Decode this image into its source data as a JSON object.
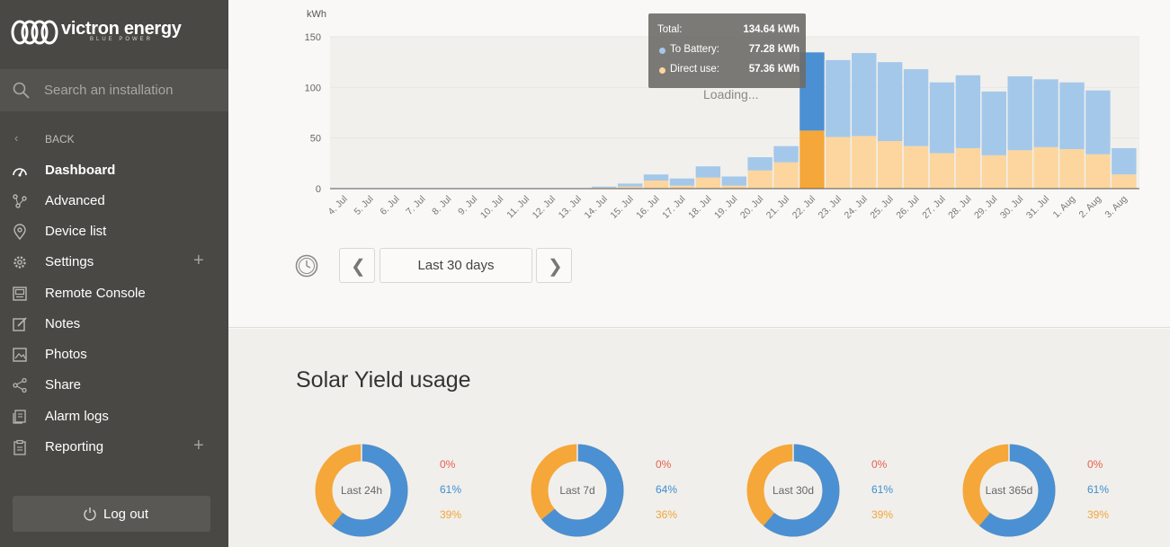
{
  "brand": {
    "name": "victron energy",
    "tagline": "BLUE POWER"
  },
  "search": {
    "placeholder": "Search an installation"
  },
  "nav": {
    "back_label": "BACK",
    "items": [
      {
        "label": "Dashboard",
        "icon": "gauge-icon",
        "active": true
      },
      {
        "label": "Advanced",
        "icon": "nodes-icon"
      },
      {
        "label": "Device list",
        "icon": "map-pin-icon"
      },
      {
        "label": "Settings",
        "icon": "gear-icon",
        "expandable": true
      },
      {
        "label": "Remote Console",
        "icon": "console-icon"
      },
      {
        "label": "Notes",
        "icon": "edit-icon"
      },
      {
        "label": "Photos",
        "icon": "photo-icon"
      },
      {
        "label": "Share",
        "icon": "share-icon"
      },
      {
        "label": "Alarm logs",
        "icon": "alarm-logs-icon"
      },
      {
        "label": "Reporting",
        "icon": "clipboard-icon",
        "expandable": true
      }
    ],
    "logout_label": "Log out"
  },
  "chart": {
    "loading_text": "Loading...",
    "range_label": "Last 30 days",
    "tooltip": {
      "total_label": "Total:",
      "total_value": "134.64 kWh",
      "battery_label": "To Battery:",
      "battery_value": "77.28 kWh",
      "direct_label": "Direct use:",
      "direct_value": "57.36 kWh"
    }
  },
  "chart_data": {
    "type": "bar",
    "ylabel": "kWh",
    "ylim": [
      0,
      150
    ],
    "yticks": [
      0,
      50,
      100,
      150
    ],
    "categories": [
      "4. Jul",
      "5. Jul",
      "6. Jul",
      "7. Jul",
      "8. Jul",
      "9. Jul",
      "10. Jul",
      "11. Jul",
      "12. Jul",
      "13. Jul",
      "14. Jul",
      "15. Jul",
      "16. Jul",
      "17. Jul",
      "18. Jul",
      "19. Jul",
      "20. Jul",
      "21. Jul",
      "22. Jul",
      "23. Jul",
      "24. Jul",
      "25. Jul",
      "26. Jul",
      "27. Jul",
      "28. Jul",
      "29. Jul",
      "30. Jul",
      "31. Jul",
      "1. Aug",
      "2. Aug",
      "3. Aug"
    ],
    "series": [
      {
        "name": "Direct use",
        "color": "#fcd69e",
        "values": [
          0,
          0,
          0,
          0,
          0,
          0,
          0,
          0,
          0,
          0,
          1,
          2,
          8,
          3,
          11,
          3,
          18,
          26,
          57.36,
          51,
          52,
          47,
          42,
          35,
          40,
          33,
          38,
          41,
          39,
          34,
          14
        ]
      },
      {
        "name": "To Battery",
        "color": "#a4c8ea",
        "values": [
          0,
          0,
          0,
          0,
          0,
          0,
          0,
          0,
          0,
          0,
          1,
          3,
          6,
          7,
          11,
          9,
          13,
          16,
          77.28,
          76,
          82,
          78,
          76,
          70,
          72,
          63,
          73,
          67,
          66,
          63,
          26
        ]
      }
    ],
    "highlight_index": 18,
    "highlight_colors": {
      "Direct use": "#f5a73a",
      "To Battery": "#4b90d2"
    }
  },
  "usage": {
    "title": "Solar Yield usage",
    "colors": {
      "grid": "#e6604e",
      "battery": "#4b90d2",
      "direct": "#f5a73a"
    },
    "donuts": [
      {
        "label": "Last 24h",
        "grid": "0%",
        "battery": "61%",
        "direct": "39%",
        "battery_frac": 0.61
      },
      {
        "label": "Last 7d",
        "grid": "0%",
        "battery": "64%",
        "direct": "36%",
        "battery_frac": 0.64
      },
      {
        "label": "Last 30d",
        "grid": "0%",
        "battery": "61%",
        "direct": "39%",
        "battery_frac": 0.61
      },
      {
        "label": "Last 365d",
        "grid": "0%",
        "battery": "61%",
        "direct": "39%",
        "battery_frac": 0.61
      }
    ]
  }
}
